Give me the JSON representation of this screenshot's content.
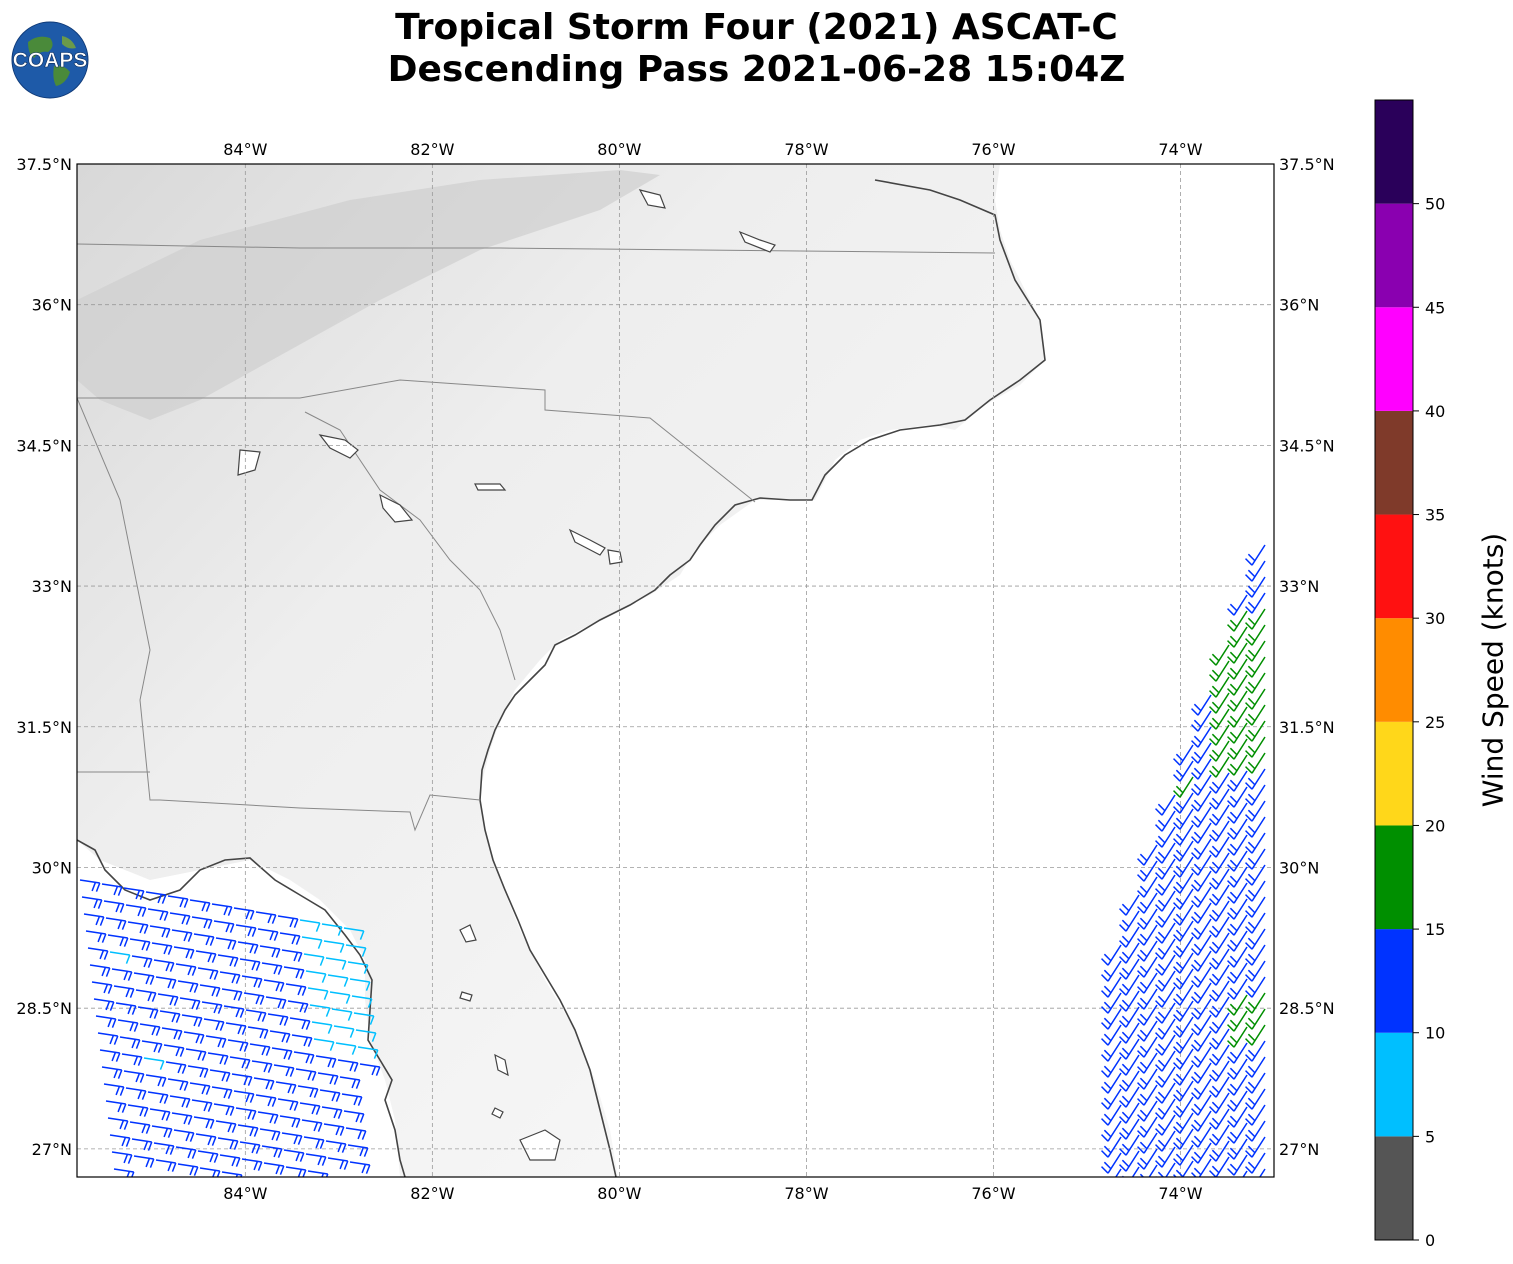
{
  "title": {
    "line1": "Tropical Storm Four (2021) ASCAT-C",
    "line2": "Descending Pass 2021-06-28 15:04Z"
  },
  "logo": {
    "text": "COAPS",
    "icon": "globe-icon"
  },
  "map": {
    "lon_range": [
      -85.8,
      -73.0
    ],
    "lat_range": [
      26.7,
      37.5
    ],
    "lon_ticks": [
      "84°W",
      "82°W",
      "80°W",
      "78°W",
      "76°W",
      "74°W"
    ],
    "lat_ticks": [
      "37.5°N",
      "36°N",
      "34.5°N",
      "33°N",
      "31.5°N",
      "30°N",
      "28.5°N",
      "27°N"
    ],
    "gridlines": true,
    "land_color": "#f4f4f4",
    "ocean_color": "#ffffff",
    "coast_color": "#444444"
  },
  "colorbar": {
    "label": "Wind Speed (knots)",
    "ticks": [
      "0",
      "5",
      "10",
      "15",
      "20",
      "25",
      "30",
      "35",
      "40",
      "45",
      "50"
    ],
    "colors": [
      "#555555",
      "#00bfff",
      "#0033ff",
      "#008f00",
      "#ffd71a",
      "#ff8c00",
      "#ff1111",
      "#7f3a2a",
      "#ff00ff",
      "#8a00b0",
      "#2a005a"
    ]
  },
  "wind_colors": {
    "calm": "#00bfff",
    "moderate": "#0033ff",
    "fresh": "#008f00"
  }
}
